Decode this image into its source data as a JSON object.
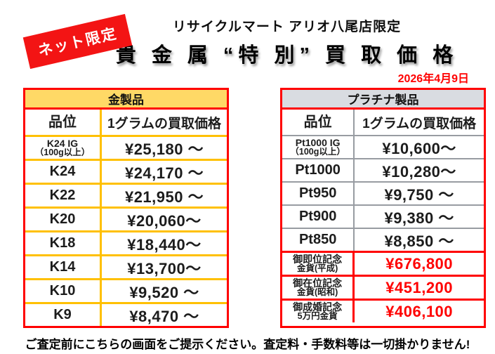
{
  "badge": {
    "label": "ネット限定"
  },
  "header": {
    "subtitle": "リサイクルマート アリオ八尾店限定",
    "title": "貴 金 属 “特 別” 買 取 価 格",
    "date": "2026年4月9日"
  },
  "colors": {
    "badge_red": "#f31414",
    "accent_red": "#ff0000",
    "gold_header_fill": "#ffd966",
    "gold_grid_border": "#ffc000",
    "platinum_header_fill": "#d9dce1",
    "platinum_grid_border": "#989ca2",
    "highlight_price_red": "#ff0000",
    "date_red": "#ff0000"
  },
  "tables": [
    {
      "title": "金製品",
      "columns": [
        "品位",
        "1グラムの買取価格"
      ],
      "rows": [
        {
          "grade": "K24 IG",
          "grade_sub": "（100g以上）",
          "price": "¥25,180 ～"
        },
        {
          "grade": "K24",
          "grade_sub": "",
          "price": "¥24,170 ～"
        },
        {
          "grade": "K22",
          "grade_sub": "",
          "price": "¥21,950 ～"
        },
        {
          "grade": "K20",
          "grade_sub": "",
          "price": "¥20,060～"
        },
        {
          "grade": "K18",
          "grade_sub": "",
          "price": "¥18,440～"
        },
        {
          "grade": "K14",
          "grade_sub": "",
          "price": "¥13,700～"
        },
        {
          "grade": "K10",
          "grade_sub": "",
          "price": "¥9,520 ～"
        },
        {
          "grade": "K9",
          "grade_sub": "",
          "price": "¥8,470 ～"
        }
      ]
    },
    {
      "title": "プラチナ製品",
      "columns": [
        "品位",
        "1グラムの買取価格"
      ],
      "rows": [
        {
          "grade": "Pt1000 IG",
          "grade_sub": "（100g以上）",
          "price": "¥10,600～"
        },
        {
          "grade": "Pt1000",
          "grade_sub": "",
          "price": "¥10,280～"
        },
        {
          "grade": "Pt950",
          "grade_sub": "",
          "price": "¥9,750 ～"
        },
        {
          "grade": "Pt900",
          "grade_sub": "",
          "price": "¥9,380 ～"
        },
        {
          "grade": "Pt850",
          "grade_sub": "",
          "price": "¥8,850 ～"
        },
        {
          "grade": "御即位記念",
          "grade_sub": "金貨(平成)",
          "price": "¥676,800"
        },
        {
          "grade": "御在位記念",
          "grade_sub": "金貨(昭和)",
          "price": "¥451,200"
        },
        {
          "grade": "御成婚記念",
          "grade_sub": "5万円金貨",
          "price": "¥406,100"
        }
      ]
    }
  ],
  "footer": {
    "notice": "ご査定前にこちらの画面をご提示ください。査定料・手数料等は一切掛かりません!"
  }
}
